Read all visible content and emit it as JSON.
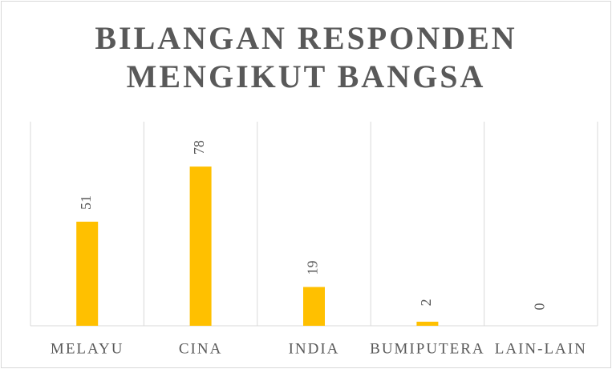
{
  "chart_data": {
    "type": "bar",
    "title": "BILANGAN RESPONDEN MENGIKUT BANGSA",
    "categories": [
      "MELAYU",
      "CINA",
      "INDIA",
      "BUMIPUTERA",
      "LAIN-LAIN"
    ],
    "values": [
      51,
      78,
      19,
      2,
      0
    ],
    "color": "#ffc000",
    "ylim": [
      0,
      100
    ],
    "grid": true,
    "data_labels": true
  }
}
